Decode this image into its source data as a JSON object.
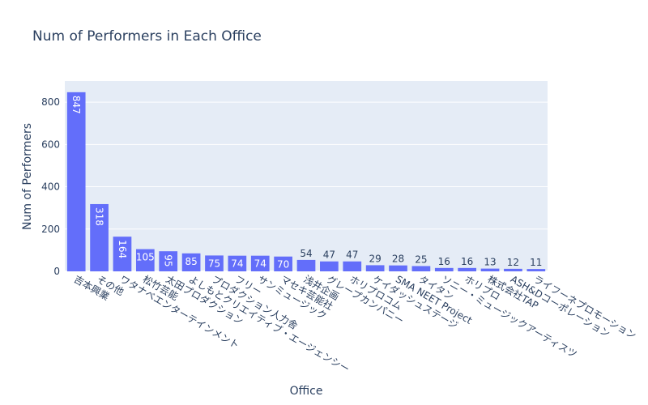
{
  "chart_data": {
    "type": "bar",
    "title": "Num of Performers in Each Office",
    "xlabel": "Office",
    "ylabel": "Num of Performers",
    "ylim": [
      0,
      900
    ],
    "yticks": [
      0,
      200,
      400,
      600,
      800
    ],
    "grid": true,
    "bar_color": "#636efa",
    "plot_background": "#e5ecf6",
    "text_color": "#2a3f5f",
    "categories": [
      "吉本興業",
      "その他",
      "ワタナベエンターテインメント",
      "松竹芸能",
      "太田プロダクション",
      "よしもとクリエイティブ・エージェンシー",
      "プロダクション人力舎",
      "フリー",
      "サンミュージック",
      "マセキ芸能社",
      "浅井企画",
      "グレープカンパニー",
      "ホリプロコム",
      "ケイダッシュステージ",
      "SMA NEET Project",
      "タイタン",
      "ソニー・ミュージックアーティスツ",
      "ホリプロ",
      "株式会社TAP",
      "ASH&Dコーポレーション",
      "ライフーネプロモーション"
    ],
    "values": [
      847,
      318,
      164,
      105,
      95,
      85,
      75,
      74,
      74,
      70,
      54,
      47,
      47,
      29,
      28,
      25,
      16,
      16,
      13,
      12,
      11
    ]
  }
}
